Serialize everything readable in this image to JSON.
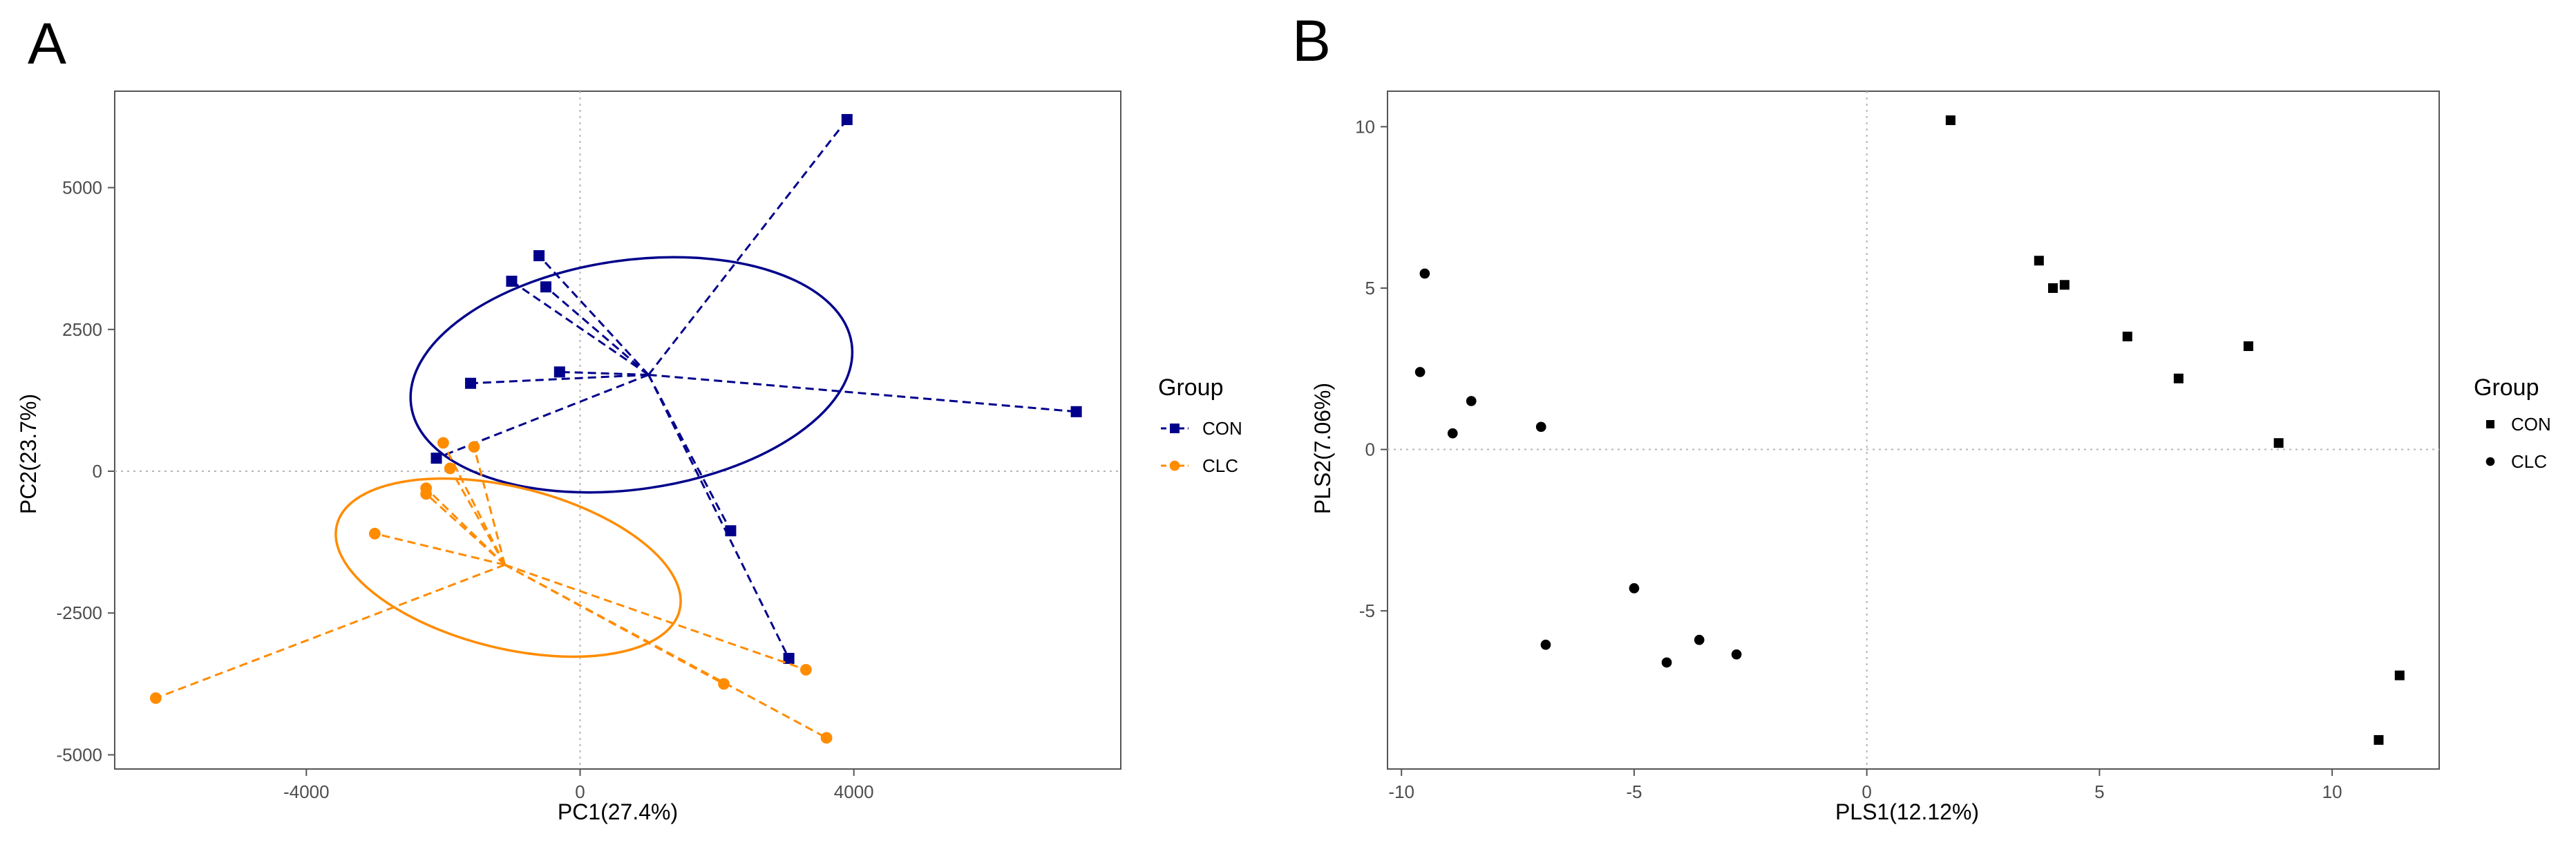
{
  "chart_data": [
    {
      "panel_label": "A",
      "type": "scatter",
      "xlabel": "PC1(27.4%)",
      "ylabel": "PC2(23.7%)",
      "xlim": [
        -6800,
        7900
      ],
      "ylim": [
        -5250,
        6700
      ],
      "xticks": [
        -4000,
        0,
        4000
      ],
      "yticks": [
        -5000,
        -2500,
        0,
        2500,
        5000
      ],
      "tick_labels_x": [
        "-4000",
        "0",
        "4000"
      ],
      "tick_labels_y": [
        "-5000",
        "-2500",
        "0",
        "2500",
        "5000"
      ],
      "grid": false,
      "reference_lines": "dotted lines at x=0 and y=0",
      "legend": {
        "title": "Group",
        "position": "right"
      },
      "series": [
        {
          "name": "CON",
          "color": "#00008B",
          "marker": "square",
          "centroid": [
            1000,
            1700
          ],
          "ellipse": {
            "center": [
              750,
              1700
            ],
            "rx": 3250,
            "ry": 2020,
            "angle_deg": -8
          },
          "points": [
            {
              "x": 3900,
              "y": 6200
            },
            {
              "x": -600,
              "y": 3800
            },
            {
              "x": -1000,
              "y": 3350
            },
            {
              "x": -500,
              "y": 3250
            },
            {
              "x": -300,
              "y": 1750
            },
            {
              "x": -1600,
              "y": 1550
            },
            {
              "x": 7250,
              "y": 1050
            },
            {
              "x": -2100,
              "y": 230
            },
            {
              "x": 2200,
              "y": -1050
            },
            {
              "x": 3050,
              "y": -3300
            }
          ]
        },
        {
          "name": "CLC",
          "color": "#FF8C00",
          "marker": "circle",
          "centroid": [
            -1100,
            -1650
          ],
          "ellipse": {
            "center": [
              -1050,
              -1700
            ],
            "rx": 2580,
            "ry": 1420,
            "angle_deg": 14
          },
          "points": [
            {
              "x": -2000,
              "y": 500
            },
            {
              "x": -1550,
              "y": 430
            },
            {
              "x": -1900,
              "y": 50
            },
            {
              "x": -2250,
              "y": -300
            },
            {
              "x": -2250,
              "y": -400
            },
            {
              "x": -3000,
              "y": -1100
            },
            {
              "x": -6200,
              "y": -4000
            },
            {
              "x": 2100,
              "y": -3750
            },
            {
              "x": 3300,
              "y": -3500
            },
            {
              "x": 3600,
              "y": -4700
            }
          ]
        }
      ]
    },
    {
      "panel_label": "B",
      "type": "scatter",
      "xlabel": "PLS1(12.12%)",
      "ylabel": "PLS2(7.06%)",
      "xlim": [
        -10.3,
        12.3
      ],
      "ylim": [
        -9.9,
        11.1
      ],
      "xticks": [
        -10,
        -5,
        0,
        5,
        10
      ],
      "yticks": [
        -5,
        0,
        5,
        10
      ],
      "tick_labels_x": [
        "-10",
        "-5",
        "0",
        "5",
        "10"
      ],
      "tick_labels_y": [
        "-5",
        "0",
        "5",
        "10"
      ],
      "grid": false,
      "reference_lines": "dotted lines at x=0 and y=0",
      "legend": {
        "title": "Group",
        "position": "right"
      },
      "series": [
        {
          "name": "CON",
          "color": "#000000",
          "marker": "square",
          "points": [
            {
              "x": 1.8,
              "y": 10.2
            },
            {
              "x": 3.7,
              "y": 5.85
            },
            {
              "x": 4.0,
              "y": 5.0
            },
            {
              "x": 4.25,
              "y": 5.1
            },
            {
              "x": 5.6,
              "y": 3.5
            },
            {
              "x": 6.7,
              "y": 2.2
            },
            {
              "x": 8.2,
              "y": 3.2
            },
            {
              "x": 8.85,
              "y": 0.2
            },
            {
              "x": 11.45,
              "y": -7.0
            },
            {
              "x": 11.0,
              "y": -9.0
            }
          ]
        },
        {
          "name": "CLC",
          "color": "#000000",
          "marker": "circle",
          "points": [
            {
              "x": -9.5,
              "y": 5.45
            },
            {
              "x": -9.6,
              "y": 2.4
            },
            {
              "x": -8.5,
              "y": 1.5
            },
            {
              "x": -8.9,
              "y": 0.5
            },
            {
              "x": -7.0,
              "y": 0.7
            },
            {
              "x": -5.0,
              "y": -4.3
            },
            {
              "x": -6.9,
              "y": -6.05
            },
            {
              "x": -3.6,
              "y": -5.9
            },
            {
              "x": -4.3,
              "y": -6.6
            },
            {
              "x": -2.8,
              "y": -6.35
            }
          ]
        }
      ]
    }
  ]
}
